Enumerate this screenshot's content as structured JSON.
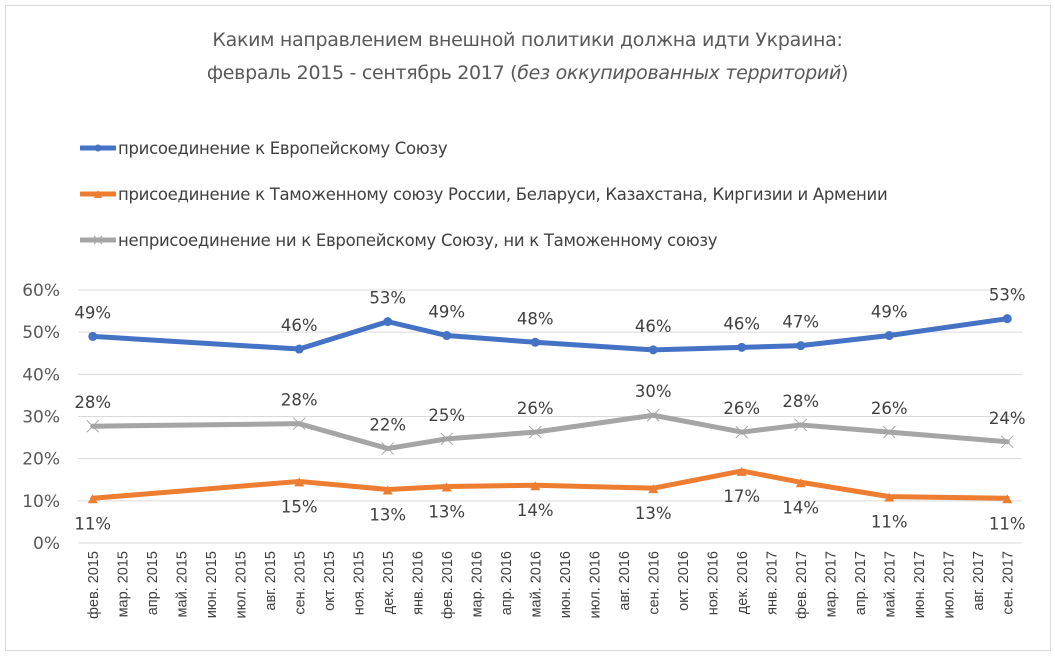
{
  "chart_data": {
    "type": "line",
    "title_line1": "Каким направлением внешной политики должна идти Украина:",
    "title_line2_prefix": "февраль 2015 - сентябрь 2017 (",
    "title_line2_italic": "без оккупированных  территорий",
    "title_line2_suffix": ")",
    "xlabel": "",
    "ylabel": "",
    "ylim": [
      0,
      0.6
    ],
    "yticks": [
      "0%",
      "10%",
      "20%",
      "30%",
      "40%",
      "50%",
      "60%"
    ],
    "grid": true,
    "legend_position": "top-left",
    "categories": [
      "фев. 2015",
      "мар. 2015",
      "апр. 2015",
      "май. 2015",
      "июн. 2015",
      "июл. 2015",
      "авг. 2015",
      "сен. 2015",
      "окт. 2015",
      "ноя. 2015",
      "дек. 2015",
      "янв. 2016",
      "фев. 2016",
      "мар. 2016",
      "апр. 2016",
      "май. 2016",
      "июн. 2016",
      "июл. 2016",
      "авг. 2016",
      "сен. 2016",
      "окт. 2016",
      "ноя. 2016",
      "дек. 2016",
      "янв. 2017",
      "фев. 2017",
      "мар. 2017",
      "апр. 2017",
      "май. 2017",
      "июн. 2017",
      "июл. 2017",
      "авг. 2017",
      "сен. 2017"
    ],
    "series": [
      {
        "name": "присоединение к Европейскому Союзу",
        "color": "#4472c4",
        "marker": "circle",
        "label_position": "above",
        "points": [
          {
            "index": 0,
            "value": 0.49,
            "label": "49%"
          },
          {
            "index": 7,
            "value": 0.46,
            "label": "46%"
          },
          {
            "index": 10,
            "value": 0.525,
            "label": "53%"
          },
          {
            "index": 12,
            "value": 0.492,
            "label": "49%"
          },
          {
            "index": 15,
            "value": 0.476,
            "label": "48%"
          },
          {
            "index": 19,
            "value": 0.458,
            "label": "46%"
          },
          {
            "index": 22,
            "value": 0.464,
            "label": "46%"
          },
          {
            "index": 24,
            "value": 0.468,
            "label": "47%"
          },
          {
            "index": 27,
            "value": 0.492,
            "label": "49%"
          },
          {
            "index": 31,
            "value": 0.532,
            "label": "53%"
          }
        ]
      },
      {
        "name": "присоединение к Таможенному союзу России, Беларуси, Казахстана, Киргизии и Армении",
        "color": "#ed7d31",
        "marker": "triangle",
        "label_position": "below",
        "points": [
          {
            "index": 0,
            "value": 0.106,
            "label": "11%"
          },
          {
            "index": 7,
            "value": 0.146,
            "label": "15%"
          },
          {
            "index": 10,
            "value": 0.127,
            "label": "13%"
          },
          {
            "index": 12,
            "value": 0.134,
            "label": "13%"
          },
          {
            "index": 15,
            "value": 0.137,
            "label": "14%"
          },
          {
            "index": 19,
            "value": 0.13,
            "label": "13%"
          },
          {
            "index": 22,
            "value": 0.171,
            "label": "17%"
          },
          {
            "index": 24,
            "value": 0.144,
            "label": "14%"
          },
          {
            "index": 27,
            "value": 0.11,
            "label": "11%"
          },
          {
            "index": 31,
            "value": 0.106,
            "label": "11%"
          }
        ]
      },
      {
        "name": "неприсоединение ни к Европейскому Союзу, ни к Таможенному союзу",
        "color": "#a5a5a5",
        "marker": "x",
        "label_position": "above",
        "points": [
          {
            "index": 0,
            "value": 0.277,
            "label": "28%"
          },
          {
            "index": 7,
            "value": 0.283,
            "label": "28%"
          },
          {
            "index": 10,
            "value": 0.224,
            "label": "22%"
          },
          {
            "index": 12,
            "value": 0.247,
            "label": "25%"
          },
          {
            "index": 15,
            "value": 0.263,
            "label": "26%"
          },
          {
            "index": 19,
            "value": 0.303,
            "label": "30%"
          },
          {
            "index": 22,
            "value": 0.263,
            "label": "26%"
          },
          {
            "index": 24,
            "value": 0.28,
            "label": "28%"
          },
          {
            "index": 27,
            "value": 0.263,
            "label": "26%"
          },
          {
            "index": 31,
            "value": 0.24,
            "label": "24%"
          }
        ]
      }
    ]
  }
}
